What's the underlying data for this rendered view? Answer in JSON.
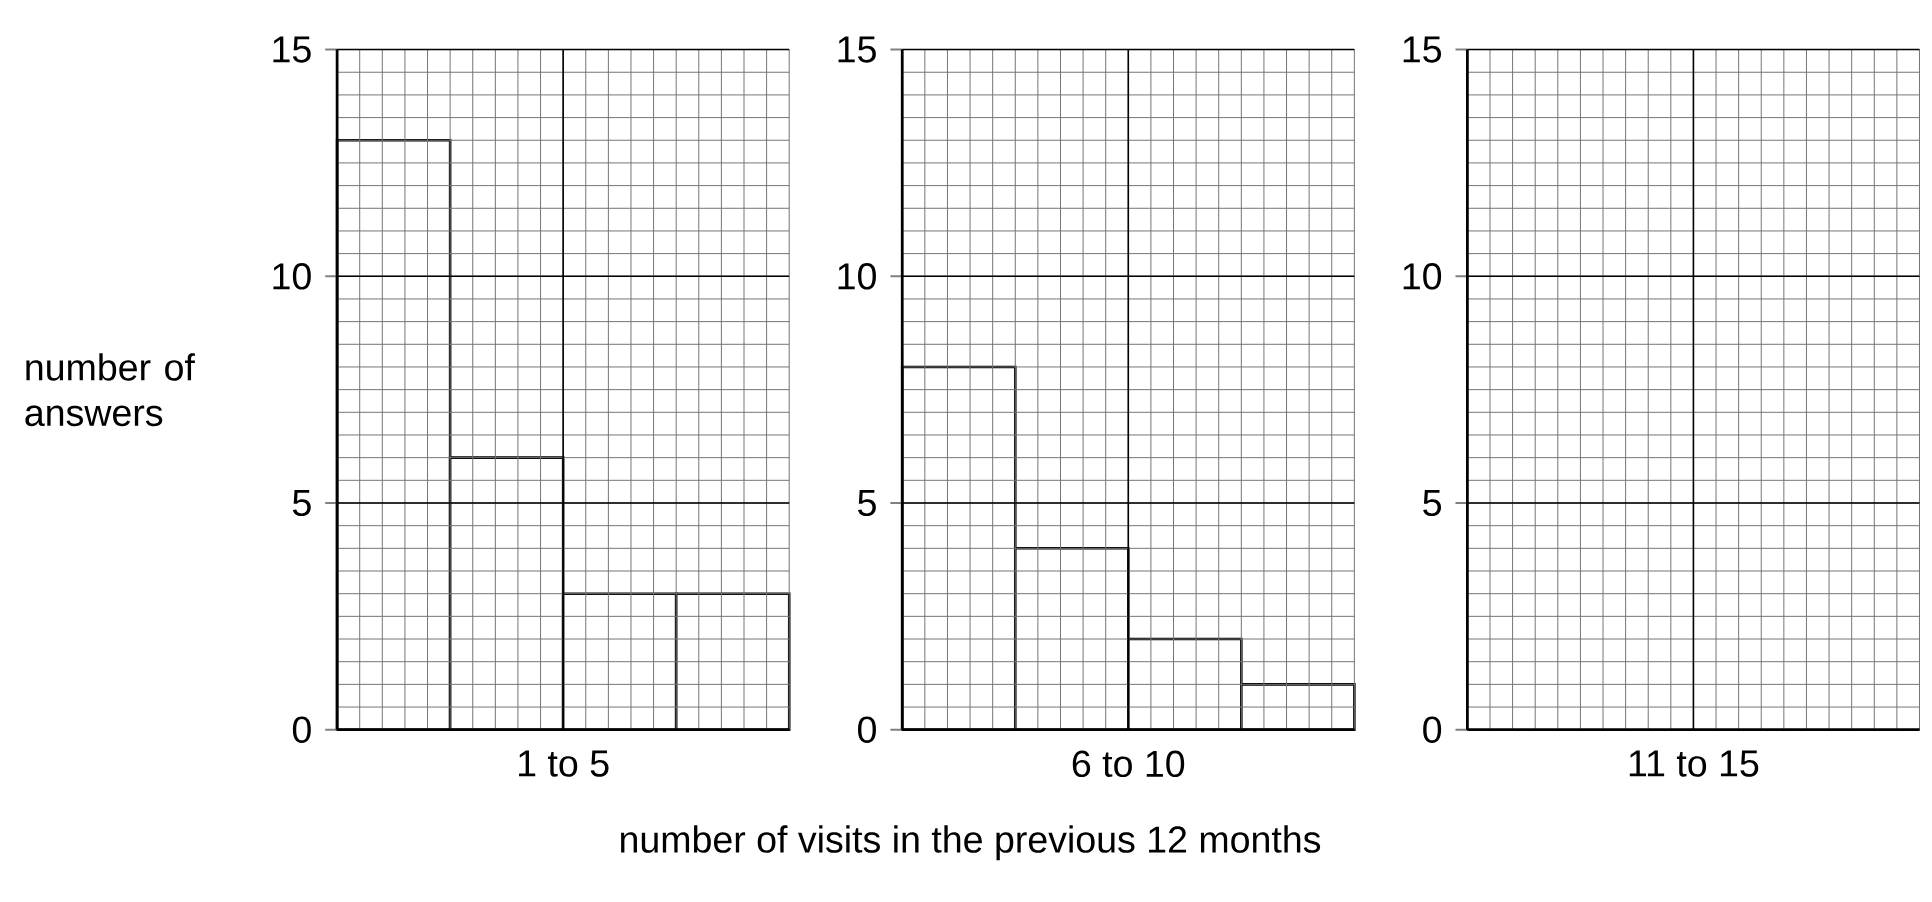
{
  "chart_data": [
    {
      "type": "bar",
      "categories": [
        null,
        null,
        null,
        null
      ],
      "values": [
        13,
        6,
        3,
        3
      ],
      "color": "#000000",
      "xlabel": "1 to 5",
      "ylabel": "number of answers",
      "ylim": [
        0,
        15
      ],
      "yticks": [
        0,
        5,
        10,
        15
      ],
      "grid": true
    },
    {
      "type": "bar",
      "categories": [
        null,
        null,
        null,
        null
      ],
      "values": [
        8,
        4,
        2,
        1
      ],
      "color": "#000000",
      "xlabel": "6 to 10",
      "ylim": [
        0,
        15
      ],
      "yticks": [
        0,
        5,
        10,
        15
      ],
      "grid": true,
      "annotations": [
        "number of visits in the previous 12 months"
      ]
    },
    {
      "type": "bar",
      "categories": [
        null,
        null,
        null,
        null
      ],
      "values": [
        null,
        null,
        null,
        null
      ],
      "color": "#000000",
      "xlabel": "11 to 15",
      "ylim": [
        0,
        15
      ],
      "yticks": [
        0,
        5,
        10,
        15
      ],
      "grid": true
    }
  ]
}
